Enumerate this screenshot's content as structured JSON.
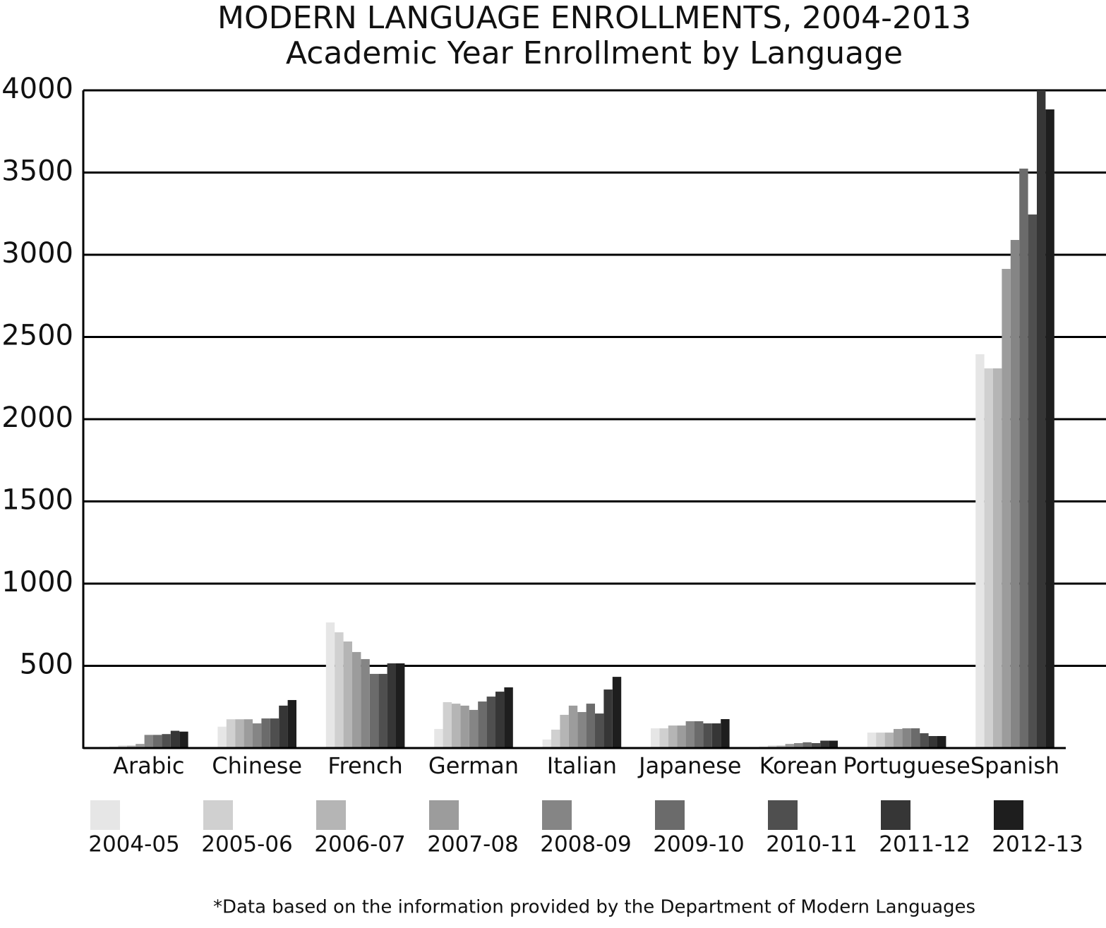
{
  "chart_data": {
    "type": "bar",
    "title": "MODERN LANGUAGE ENROLLMENTS, 2004-2013",
    "subtitle": "Academic Year Enrollment by Language",
    "note": "*Data based on the information provided by the Department of Modern Languages",
    "categories": [
      "Arabic",
      "Chinese",
      "French",
      "German",
      "Italian",
      "Japanese",
      "Korean",
      "Portuguese",
      "Spanish"
    ],
    "series": [
      {
        "name": "2004-05",
        "color": "#e6e6e6",
        "values": [
          10,
          130,
          764,
          116,
          52,
          120,
          10,
          94,
          2395
        ]
      },
      {
        "name": "2005-06",
        "color": "#d0d0d0",
        "values": [
          15,
          175,
          704,
          279,
          112,
          120,
          15,
          94,
          2309
        ]
      },
      {
        "name": "2006-07",
        "color": "#b5b5b5",
        "values": [
          15,
          175,
          648,
          270,
          202,
          137,
          15,
          94,
          2309
        ]
      },
      {
        "name": "2007-08",
        "color": "#9c9c9c",
        "values": [
          25,
          175,
          584,
          258,
          258,
          137,
          25,
          116,
          2914
        ]
      },
      {
        "name": "2008-09",
        "color": "#858585",
        "values": [
          80,
          150,
          541,
          232,
          219,
          163,
          30,
          120,
          3090
        ]
      },
      {
        "name": "2009-10",
        "color": "#6b6b6b",
        "values": [
          80,
          180,
          451,
          283,
          270,
          163,
          35,
          120,
          3524
        ]
      },
      {
        "name": "2010-11",
        "color": "#4f4f4f",
        "values": [
          85,
          180,
          451,
          313,
          210,
          150,
          30,
          90,
          3245
        ]
      },
      {
        "name": "2011-12",
        "color": "#363636",
        "values": [
          105,
          258,
          515,
          343,
          356,
          150,
          45,
          73,
          4000
        ]
      },
      {
        "name": "2012-13",
        "color": "#1e1e1e",
        "values": [
          100,
          292,
          515,
          369,
          433,
          176,
          45,
          73,
          3884
        ]
      }
    ],
    "ylim": [
      0,
      4000
    ],
    "yticks": [
      500,
      1000,
      1500,
      2000,
      2500,
      3000,
      3500,
      4000
    ],
    "grid": true
  }
}
